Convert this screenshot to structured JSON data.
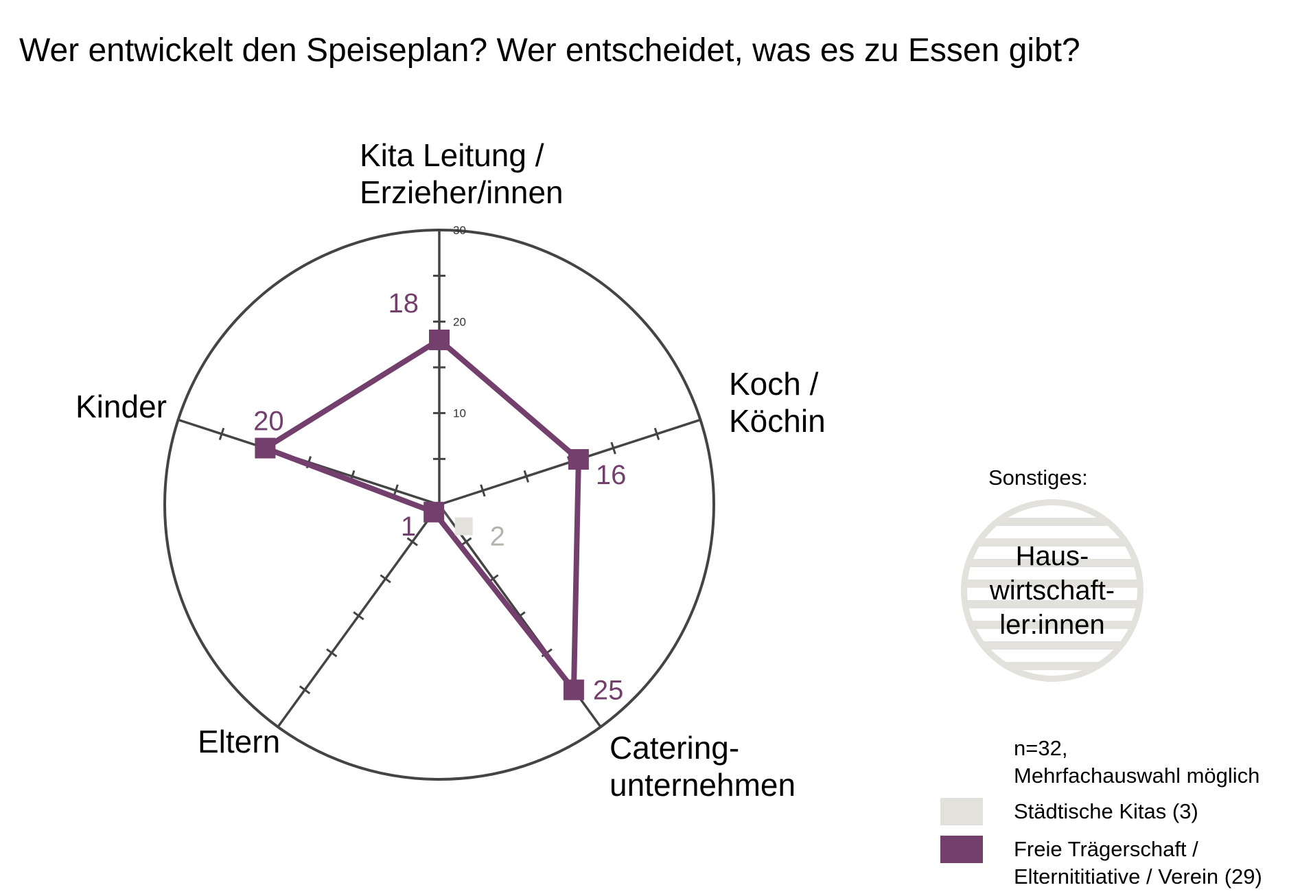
{
  "title": "Wer entwickelt den Speiseplan? Wer entscheidet, was es zu Essen gibt?",
  "other": {
    "caption": "Sonstiges:",
    "lines": [
      "Haus-",
      "wirtschaft-",
      "ler:innen"
    ]
  },
  "footnote": [
    "n=32,",
    "Mehrfachauswahl möglich"
  ],
  "legend": [
    {
      "lines": [
        "Städtische Kitas (3)"
      ],
      "color": "#e3e1dc"
    },
    {
      "lines": [
        "Freie Trägerschaft /",
        "Elternititiative / Verein (29)"
      ],
      "color": "#733f6d"
    }
  ],
  "chart_data": {
    "type": "radar",
    "title": "Wer entwickelt den Speiseplan? Wer entscheidet, was es zu Essen gibt?",
    "axes": [
      {
        "lines": [
          "Kita Leitung /",
          "Erzieher/innen"
        ]
      },
      {
        "lines": [
          "Koch /",
          "Köchin"
        ]
      },
      {
        "lines": [
          "Catering-",
          "unternehmen"
        ]
      },
      {
        "lines": [
          "Eltern"
        ]
      },
      {
        "lines": [
          "Kinder"
        ]
      }
    ],
    "range": [
      0,
      30
    ],
    "ticks": [
      10,
      20,
      30
    ],
    "series": [
      {
        "name": "Städtische Kitas (3)",
        "color": "#e3e1dc",
        "label_color": "#b5b3ae",
        "values": [
          0,
          0,
          2,
          0,
          0
        ],
        "labels": [
          "",
          "",
          "2",
          "",
          ""
        ]
      },
      {
        "name": "Freie Trägerschaft / Elternititiative / Verein (29)",
        "color": "#733f6d",
        "label_color": "#733f6d",
        "values": [
          18,
          16,
          25,
          1,
          20
        ],
        "labels": [
          "18",
          "16",
          "25",
          "1",
          "20"
        ]
      }
    ]
  }
}
